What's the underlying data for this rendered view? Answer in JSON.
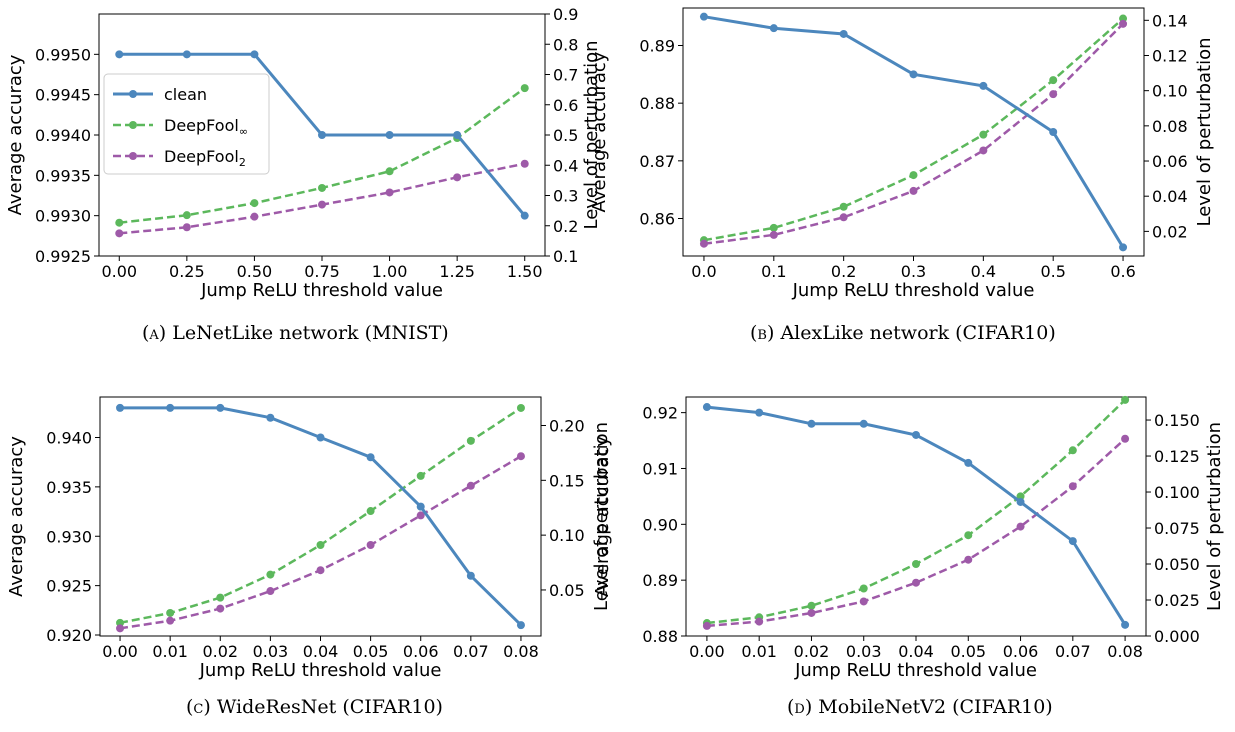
{
  "chart_data": [
    {
      "type": "line",
      "caption_tag": "(a)",
      "caption_text": "LeNetLike network (MNIST)",
      "xlabel": "Jump ReLU threshold value",
      "ylabel": "Average accuracy",
      "y2label": "Level of perturbation",
      "x": [
        0.0,
        0.25,
        0.5,
        0.75,
        1.0,
        1.25,
        1.5
      ],
      "x_ticks": [
        "0.00",
        "0.25",
        "0.50",
        "0.75",
        "1.00",
        "1.25",
        "1.50"
      ],
      "xlim": [
        -0.075,
        1.575
      ],
      "ylim": [
        0.9925,
        0.9955
      ],
      "y_ticks": [
        "0.9925",
        "0.9930",
        "0.9935",
        "0.9940",
        "0.9945",
        "0.9950"
      ],
      "y2lim": [
        0.1,
        0.9
      ],
      "y2_ticks": [
        "0.1",
        "0.2",
        "0.3",
        "0.4",
        "0.5",
        "0.6",
        "0.7",
        "0.8",
        "0.9"
      ],
      "legend": "left",
      "series": [
        {
          "name": "clean",
          "axis": "left",
          "color": "#4c87bd",
          "values": [
            0.995,
            0.995,
            0.995,
            0.994,
            0.994,
            0.994,
            0.993
          ]
        },
        {
          "name": "DeepFool",
          "sub": "∞",
          "axis": "right",
          "color": "#5cb85c",
          "values": [
            0.21,
            0.235,
            0.275,
            0.325,
            0.38,
            0.49,
            0.655
          ]
        },
        {
          "name": "DeepFool",
          "sub": "2",
          "axis": "right",
          "color": "#9e5aa8",
          "values": [
            0.175,
            0.195,
            0.23,
            0.27,
            0.31,
            0.36,
            0.405
          ]
        }
      ]
    },
    {
      "type": "line",
      "caption_tag": "(b)",
      "caption_text": "AlexLike network (CIFAR10)",
      "xlabel": "Jump ReLU threshold value",
      "ylabel": "Average accuracy",
      "y2label": "Level of perturbation",
      "x": [
        0.0,
        0.1,
        0.2,
        0.3,
        0.4,
        0.5,
        0.6
      ],
      "x_ticks": [
        "0.0",
        "0.1",
        "0.2",
        "0.3",
        "0.4",
        "0.5",
        "0.6"
      ],
      "xlim": [
        -0.03,
        0.63
      ],
      "ylim": [
        0.8535,
        0.8965
      ],
      "y_ticks": [
        "0.86",
        "0.87",
        "0.88",
        "0.89"
      ],
      "y2lim": [
        0.006,
        0.147
      ],
      "y2_ticks": [
        "0.02",
        "0.04",
        "0.06",
        "0.08",
        "0.10",
        "0.12",
        "0.14"
      ],
      "series": [
        {
          "name": "clean",
          "axis": "left",
          "color": "#4c87bd",
          "values": [
            0.895,
            0.893,
            0.892,
            0.885,
            0.883,
            0.875,
            0.855
          ]
        },
        {
          "name": "DeepFool",
          "sub": "∞",
          "axis": "right",
          "color": "#5cb85c",
          "values": [
            0.015,
            0.022,
            0.034,
            0.052,
            0.075,
            0.106,
            0.141
          ]
        },
        {
          "name": "DeepFool",
          "sub": "2",
          "axis": "right",
          "color": "#9e5aa8",
          "values": [
            0.013,
            0.018,
            0.028,
            0.043,
            0.066,
            0.098,
            0.138
          ]
        }
      ]
    },
    {
      "type": "line",
      "caption_tag": "(c)",
      "caption_text": "WideResNet (CIFAR10)",
      "xlabel": "Jump ReLU threshold value",
      "ylabel": "Average accuracy",
      "y2label": "Level of perturbation",
      "x": [
        0.0,
        0.01,
        0.02,
        0.03,
        0.04,
        0.05,
        0.06,
        0.07,
        0.08
      ],
      "x_ticks": [
        "0.00",
        "0.01",
        "0.02",
        "0.03",
        "0.04",
        "0.05",
        "0.06",
        "0.07",
        "0.08"
      ],
      "xlim": [
        -0.004,
        0.084
      ],
      "ylim": [
        0.9199,
        0.9441
      ],
      "y_ticks": [
        "0.920",
        "0.925",
        "0.930",
        "0.935",
        "0.940"
      ],
      "y2lim": [
        0.008,
        0.226
      ],
      "y2_ticks": [
        "0.05",
        "0.10",
        "0.15",
        "0.20"
      ],
      "series": [
        {
          "name": "clean",
          "axis": "left",
          "color": "#4c87bd",
          "values": [
            0.943,
            0.943,
            0.943,
            0.942,
            0.94,
            0.938,
            0.933,
            0.926,
            0.921
          ]
        },
        {
          "name": "DeepFool",
          "sub": "∞",
          "axis": "right",
          "color": "#5cb85c",
          "values": [
            0.02,
            0.029,
            0.043,
            0.064,
            0.091,
            0.122,
            0.154,
            0.186,
            0.216
          ]
        },
        {
          "name": "DeepFool",
          "sub": "2",
          "axis": "right",
          "color": "#9e5aa8",
          "values": [
            0.015,
            0.022,
            0.033,
            0.049,
            0.068,
            0.091,
            0.118,
            0.145,
            0.172
          ]
        }
      ]
    },
    {
      "type": "line",
      "caption_tag": "(d)",
      "caption_text": "MobileNetV2 (CIFAR10)",
      "xlabel": "Jump ReLU threshold value",
      "ylabel": "Average accuracy",
      "y2label": "Level of perturbation",
      "x": [
        0.0,
        0.01,
        0.02,
        0.03,
        0.04,
        0.05,
        0.06,
        0.07,
        0.08
      ],
      "x_ticks": [
        "0.00",
        "0.01",
        "0.02",
        "0.03",
        "0.04",
        "0.05",
        "0.06",
        "0.07",
        "0.08"
      ],
      "xlim": [
        -0.004,
        0.084
      ],
      "ylim": [
        0.88,
        0.9228
      ],
      "y_ticks": [
        "0.88",
        "0.89",
        "0.90",
        "0.91",
        "0.92"
      ],
      "y2lim": [
        0.0,
        0.166
      ],
      "y2_ticks": [
        "0.000",
        "0.025",
        "0.050",
        "0.075",
        "0.100",
        "0.125",
        "0.150"
      ],
      "series": [
        {
          "name": "clean",
          "axis": "left",
          "color": "#4c87bd",
          "values": [
            0.921,
            0.92,
            0.918,
            0.918,
            0.916,
            0.911,
            0.904,
            0.897,
            0.882
          ]
        },
        {
          "name": "DeepFool",
          "sub": "∞",
          "axis": "right",
          "color": "#5cb85c",
          "values": [
            0.009,
            0.013,
            0.021,
            0.033,
            0.05,
            0.07,
            0.097,
            0.129,
            0.164
          ]
        },
        {
          "name": "DeepFool",
          "sub": "2",
          "axis": "right",
          "color": "#9e5aa8",
          "values": [
            0.007,
            0.01,
            0.016,
            0.024,
            0.037,
            0.053,
            0.076,
            0.104,
            0.137
          ]
        }
      ]
    }
  ]
}
